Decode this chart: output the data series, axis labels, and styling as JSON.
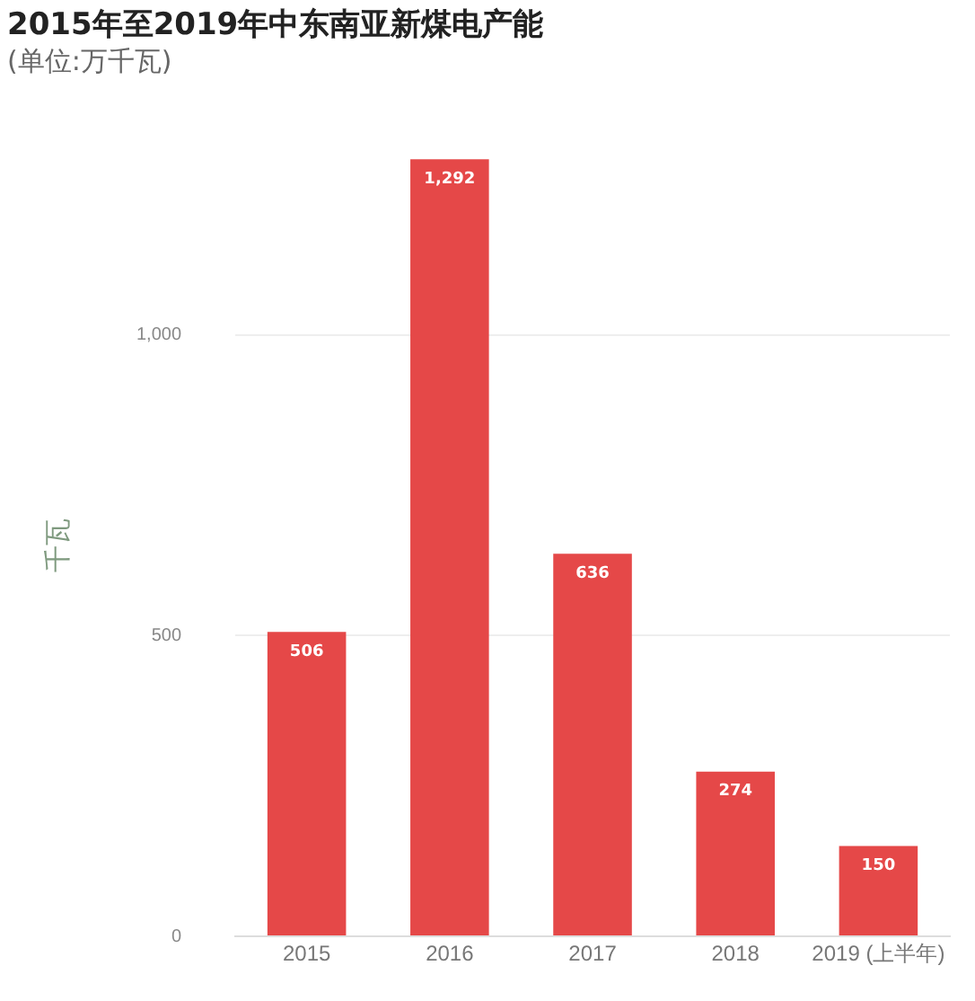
{
  "chart_data": {
    "type": "bar",
    "title": "2015年至2019年中东南亚新煤电产能",
    "subtitle": "(单位:万千瓦)",
    "ylabel": "千瓦",
    "categories": [
      "2015",
      "2016",
      "2017",
      "2018",
      "2019 (上半年)"
    ],
    "values": [
      506,
      1292,
      636,
      274,
      150
    ],
    "value_labels": [
      "506",
      "1,292",
      "636",
      "274",
      "150"
    ],
    "color": "#e54848",
    "ylim": [
      0,
      1300
    ],
    "yticks": [
      0,
      500,
      {
        "value": 1000,
        "label": "1,000"
      }
    ],
    "grid": "y",
    "legend": false
  }
}
